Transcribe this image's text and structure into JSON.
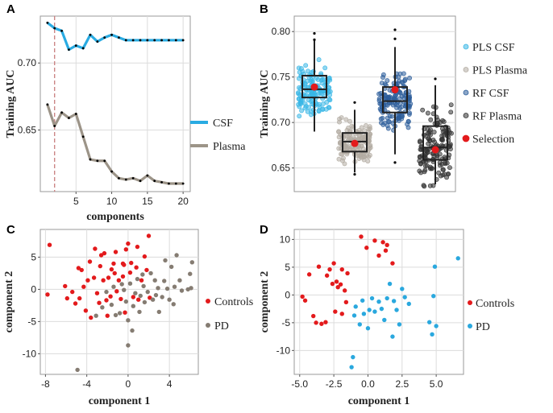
{
  "figure": {
    "letters": [
      "A",
      "B",
      "C",
      "D"
    ]
  },
  "colors": {
    "csf": "#29abe2",
    "plasma": "#9c9488",
    "pls_csf": "#39b7e6",
    "pls_plasma": "#b3aca2",
    "rf_csf": "#2c5d9a",
    "rf_plasma": "#333333",
    "selection": "#e31a1c",
    "controls": "#e31a1c",
    "pd_c": "#857c72",
    "pd_d": "#2aa8de",
    "cutoff": "#c97f7f"
  },
  "chart_data": [
    {
      "id": "A",
      "type": "line",
      "title": "",
      "xlabel": "components",
      "ylabel": "Training AUC",
      "x": [
        1,
        2,
        3,
        4,
        5,
        6,
        7,
        8,
        9,
        10,
        11,
        12,
        13,
        14,
        15,
        16,
        17,
        18,
        19,
        20
      ],
      "series": [
        {
          "name": "CSF",
          "values": [
            0.73,
            0.726,
            0.724,
            0.71,
            0.713,
            0.711,
            0.721,
            0.716,
            0.719,
            0.721,
            0.719,
            0.717,
            0.717,
            0.717,
            0.717,
            0.717,
            0.717,
            0.717,
            0.717,
            0.717
          ]
        },
        {
          "name": "Plasma",
          "values": [
            0.669,
            0.653,
            0.663,
            0.659,
            0.662,
            0.645,
            0.628,
            0.627,
            0.627,
            0.619,
            0.614,
            0.613,
            0.614,
            0.612,
            0.616,
            0.612,
            0.611,
            0.61,
            0.61,
            0.61
          ]
        }
      ],
      "vline_x": 2,
      "xticks": [
        5,
        10,
        15,
        20
      ],
      "yticks": [
        0.65,
        0.7
      ],
      "xlim": [
        0,
        21
      ],
      "ylim": [
        0.604,
        0.735
      ]
    },
    {
      "id": "B",
      "type": "box",
      "title": "",
      "xlabel": "",
      "ylabel": "Training AUC",
      "groups": [
        {
          "name": "PLS CSF",
          "q1": 0.7275,
          "median": 0.7365,
          "q3": 0.7515,
          "whisker_low": 0.69,
          "whisker_high": 0.79,
          "selection": 0.739,
          "outliers": [
            0.798,
            0.791
          ],
          "spread_low": 0.688,
          "spread_high": 0.802
        },
        {
          "name": "PLS Plasma",
          "q1": 0.668,
          "median": 0.679,
          "q3": 0.6885,
          "whisker_low": 0.645,
          "whisker_high": 0.714,
          "selection": 0.677,
          "outliers": [
            0.722,
            0.643
          ],
          "spread_low": 0.64,
          "spread_high": 0.724
        },
        {
          "name": "RF CSF",
          "q1": 0.711,
          "median": 0.7235,
          "q3": 0.739,
          "whisker_low": 0.665,
          "whisker_high": 0.783,
          "selection": 0.736,
          "outliers": [
            0.802,
            0.792,
            0.656
          ],
          "spread_low": 0.655,
          "spread_high": 0.811
        },
        {
          "name": "RF Plasma",
          "q1": 0.659,
          "median": 0.6725,
          "q3": 0.696,
          "whisker_low": 0.632,
          "whisker_high": 0.741,
          "selection": 0.67,
          "outliers": [
            0.748
          ],
          "spread_low": 0.628,
          "spread_high": 0.745
        }
      ],
      "legend": [
        "PLS CSF",
        "PLS Plasma",
        "RF CSF",
        "RF Plasma",
        "Selection"
      ],
      "yticks": [
        0.65,
        0.7,
        0.75,
        0.8
      ],
      "ylim": [
        0.624,
        0.817
      ]
    },
    {
      "id": "C",
      "type": "scatter",
      "title": "",
      "xlabel": "component 1",
      "ylabel": "component 2",
      "legend": [
        "Controls",
        "PD"
      ],
      "xticks": [
        -8,
        -4,
        0,
        4
      ],
      "yticks": [
        -10,
        -5,
        0,
        5
      ],
      "xlim": [
        -8.5,
        6.8
      ],
      "ylim": [
        -13.2,
        9.3
      ],
      "series": [
        {
          "name": "Controls",
          "points": [
            [
              -7.6,
              6.9
            ],
            [
              -7.8,
              -0.8
            ],
            [
              -6.1,
              0.5
            ],
            [
              -5.9,
              -1.4
            ],
            [
              -5.4,
              -0.4
            ],
            [
              -5.1,
              -2.2
            ],
            [
              -4.8,
              3.3
            ],
            [
              -4.7,
              -1.4
            ],
            [
              -4.3,
              0.4
            ],
            [
              -4.1,
              -3.3
            ],
            [
              -3.9,
              1.4
            ],
            [
              -3.7,
              4.3
            ],
            [
              -3.3,
              1.8
            ],
            [
              -3.2,
              6.3
            ],
            [
              -3.0,
              -0.6
            ],
            [
              -2.7,
              3.6
            ],
            [
              -2.6,
              5.3
            ],
            [
              -2.8,
              -2.1
            ],
            [
              -2.4,
              1.4
            ],
            [
              -2.1,
              -1.7
            ],
            [
              -2.0,
              -4.1
            ],
            [
              -1.7,
              -1.1
            ],
            [
              -1.6,
              3.1
            ],
            [
              -1.4,
              4.0
            ],
            [
              -1.3,
              2.5
            ],
            [
              -1.2,
              5.8
            ],
            [
              -0.9,
              1.4
            ],
            [
              -0.7,
              -1.5
            ],
            [
              -0.5,
              4.0
            ],
            [
              -0.4,
              3.8
            ],
            [
              -0.2,
              6.2
            ],
            [
              0.0,
              7.1
            ],
            [
              0.2,
              2.6
            ],
            [
              0.3,
              4.1
            ],
            [
              0.5,
              -1.2
            ],
            [
              0.8,
              3.4
            ],
            [
              1.0,
              -1.6
            ],
            [
              1.3,
              1.4
            ],
            [
              1.6,
              5.1
            ],
            [
              1.8,
              3.0
            ],
            [
              2.1,
              -1.3
            ],
            [
              2.0,
              8.3
            ],
            [
              -3.6,
              -4.4
            ],
            [
              -1.9,
              1.8
            ],
            [
              -2.3,
              5.6
            ],
            [
              -1.1,
              -0.3
            ],
            [
              -0.3,
              -3.6
            ],
            [
              0.9,
              6.6
            ],
            [
              -4.5,
              3.0
            ],
            [
              -0.5,
              2.0
            ]
          ]
        },
        {
          "name": "PD",
          "points": [
            [
              -4.9,
              -12.5
            ],
            [
              -3.1,
              -4.1
            ],
            [
              -2.5,
              -2.8
            ],
            [
              -2.1,
              -0.4
            ],
            [
              -1.6,
              -2.4
            ],
            [
              -1.2,
              -4.0
            ],
            [
              -0.8,
              -3.7
            ],
            [
              -0.6,
              0.8
            ],
            [
              -0.4,
              -0.1
            ],
            [
              -0.2,
              -1.9
            ],
            [
              0.0,
              -4.8
            ],
            [
              0.0,
              -8.7
            ],
            [
              0.2,
              0.9
            ],
            [
              0.5,
              -2.6
            ],
            [
              0.7,
              -0.6
            ],
            [
              0.9,
              1.6
            ],
            [
              1.1,
              -3.5
            ],
            [
              1.2,
              -1.0
            ],
            [
              1.5,
              0.5
            ],
            [
              1.6,
              -2.0
            ],
            [
              1.9,
              -0.4
            ],
            [
              2.2,
              2.5
            ],
            [
              2.4,
              -1.6
            ],
            [
              2.6,
              1.4
            ],
            [
              2.9,
              0.2
            ],
            [
              3.0,
              -3.5
            ],
            [
              3.3,
              -1.2
            ],
            [
              3.5,
              1.3
            ],
            [
              3.8,
              0.1
            ],
            [
              4.0,
              -1.6
            ],
            [
              4.2,
              3.5
            ],
            [
              4.4,
              -2.3
            ],
            [
              4.5,
              0.4
            ],
            [
              4.7,
              5.3
            ],
            [
              5.0,
              1.4
            ],
            [
              5.2,
              -0.2
            ],
            [
              5.8,
              0.0
            ],
            [
              6.0,
              2.4
            ],
            [
              6.2,
              4.2
            ],
            [
              6.1,
              0.2
            ],
            [
              3.6,
              4.5
            ],
            [
              2.7,
              -0.9
            ],
            [
              1.4,
              2.3
            ],
            [
              -1.4,
              0.4
            ],
            [
              0.4,
              -6.4
            ]
          ]
        }
      ]
    },
    {
      "id": "D",
      "type": "scatter",
      "title": "",
      "xlabel": "component 1",
      "ylabel": "component 2",
      "legend": [
        "Controls",
        "PD"
      ],
      "xticks": [
        -5.0,
        -2.5,
        0.0,
        2.5,
        5.0
      ],
      "yticks": [
        -10,
        -5,
        0,
        5,
        10
      ],
      "xtick_labels": [
        "-5.0",
        "-2.5",
        "0.0",
        "2.5",
        "5.0"
      ],
      "xlim": [
        -5.4,
        7.0
      ],
      "ylim": [
        -14.3,
        11.8
      ],
      "series": [
        {
          "name": "Controls",
          "points": [
            [
              -4.8,
              -0.3
            ],
            [
              -4.6,
              -1.0
            ],
            [
              -4.3,
              3.7
            ],
            [
              -4.0,
              -3.8
            ],
            [
              -3.8,
              -5.0
            ],
            [
              -3.6,
              5.1
            ],
            [
              -3.4,
              -5.2
            ],
            [
              -3.1,
              -4.9
            ],
            [
              -3.0,
              3.5
            ],
            [
              -2.8,
              4.6
            ],
            [
              -2.6,
              2.0
            ],
            [
              -2.5,
              5.7
            ],
            [
              -2.4,
              -3.0
            ],
            [
              -2.3,
              2.4
            ],
            [
              -2.2,
              1.4
            ],
            [
              -2.0,
              1.9
            ],
            [
              -1.9,
              4.6
            ],
            [
              -1.7,
              0.8
            ],
            [
              -1.6,
              -1.3
            ],
            [
              -1.5,
              3.9
            ],
            [
              -1.9,
              -3.4
            ],
            [
              -0.1,
              8.5
            ],
            [
              -0.5,
              10.5
            ],
            [
              0.5,
              9.8
            ],
            [
              0.8,
              7.1
            ],
            [
              1.3,
              8.0
            ],
            [
              1.1,
              9.5
            ],
            [
              1.8,
              5.7
            ],
            [
              1.4,
              9.0
            ]
          ]
        },
        {
          "name": "PD",
          "points": [
            [
              -1.2,
              -13.0
            ],
            [
              -1.1,
              -11.2
            ],
            [
              -1.0,
              -3.7
            ],
            [
              -0.9,
              -2.1
            ],
            [
              -0.6,
              -5.3
            ],
            [
              -0.4,
              -1.0
            ],
            [
              -0.3,
              -3.4
            ],
            [
              0.0,
              -6.0
            ],
            [
              0.1,
              -2.7
            ],
            [
              0.3,
              -0.6
            ],
            [
              0.5,
              -3.0
            ],
            [
              0.8,
              -1.2
            ],
            [
              1.0,
              -2.5
            ],
            [
              1.2,
              -4.5
            ],
            [
              1.4,
              -0.6
            ],
            [
              1.6,
              2.0
            ],
            [
              1.8,
              -7.5
            ],
            [
              1.9,
              -1.1
            ],
            [
              2.1,
              -2.7
            ],
            [
              2.3,
              -5.3
            ],
            [
              2.5,
              1.1
            ],
            [
              2.7,
              -0.4
            ],
            [
              3.0,
              -1.6
            ],
            [
              4.5,
              -4.9
            ],
            [
              4.7,
              -7.1
            ],
            [
              4.9,
              5.1
            ],
            [
              5.0,
              -5.6
            ],
            [
              6.6,
              6.6
            ],
            [
              4.8,
              -0.2
            ]
          ]
        }
      ]
    }
  ]
}
